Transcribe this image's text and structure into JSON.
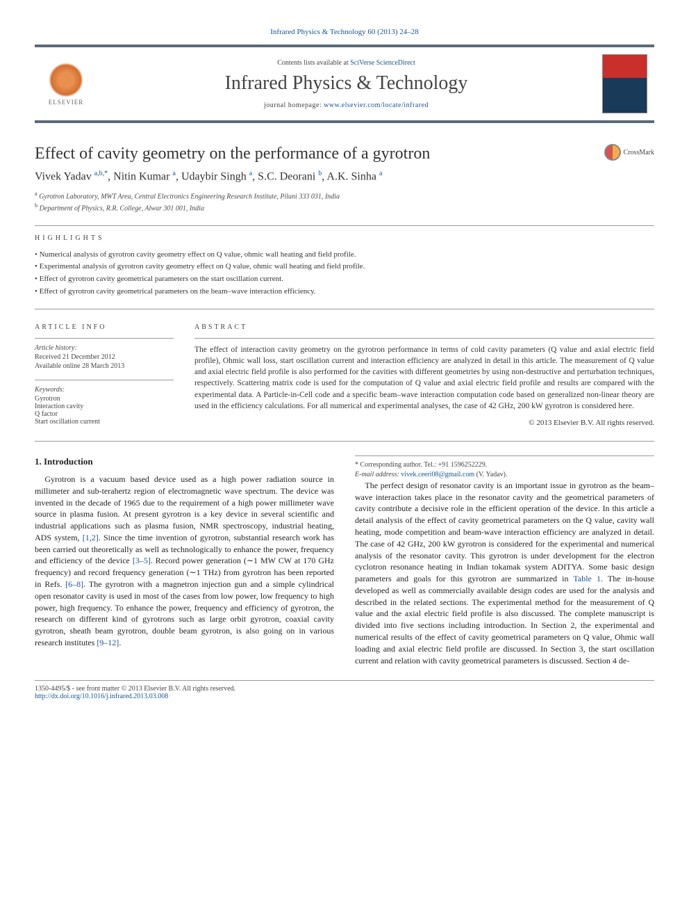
{
  "journal_ref": "Infrared Physics & Technology 60 (2013) 24–28",
  "header": {
    "contents_prefix": "Contents lists available at ",
    "contents_link": "SciVerse ScienceDirect",
    "journal_name": "Infrared Physics & Technology",
    "homepage_prefix": "journal homepage: ",
    "homepage_url": "www.elsevier.com/locate/infrared",
    "publisher": "ELSEVIER"
  },
  "article": {
    "title": "Effect of cavity geometry on the performance of a gyrotron",
    "crossmark": "CrossMark",
    "authors_html": "Vivek Yadav <sup>a,b,*</sup>, Nitin Kumar <sup>a</sup>, Udaybir Singh <sup>a</sup>, S.C. Deorani <sup>b</sup>, A.K. Sinha <sup>a</sup>",
    "affiliations": [
      {
        "sup": "a",
        "text": "Gyrotron Laboratory, MWT Area, Central Electronics Engineering Research Institute, Pilani 333 031, India"
      },
      {
        "sup": "b",
        "text": "Department of Physics, R.R. College, Alwar 301 001, India"
      }
    ]
  },
  "highlights": {
    "label": "HIGHLIGHTS",
    "items": [
      "Numerical analysis of gyrotron cavity geometry effect on Q value, ohmic wall heating and field profile.",
      "Experimental analysis of gyrotron cavity geometry effect on Q value, ohmic wall heating and field profile.",
      "Effect of gyrotron cavity geometrical parameters on the start oscillation current.",
      "Effect of gyrotron cavity geometrical parameters on the beam–wave interaction efficiency."
    ]
  },
  "article_info": {
    "label": "ARTICLE INFO",
    "history_label": "Article history:",
    "received": "Received 21 December 2012",
    "available": "Available online 28 March 2013",
    "keywords_label": "Keywords:",
    "keywords": [
      "Gyrotron",
      "Interaction cavity",
      "Q factor",
      "Start oscillation current"
    ]
  },
  "abstract": {
    "label": "ABSTRACT",
    "text": "The effect of interaction cavity geometry on the gyrotron performance in terms of cold cavity parameters (Q value and axial electric field profile), Ohmic wall loss, start oscillation current and interaction efficiency are analyzed in detail in this article. The measurement of Q value and axial electric field profile is also performed for the cavities with different geometries by using non-destructive and perturbation techniques, respectively. Scattering matrix code is used for the computation of Q value and axial electric field profile and results are compared with the experimental data. A Particle-in-Cell code and a specific beam–wave interaction computation code based on generalized non-linear theory are used in the efficiency calculations. For all numerical and experimental analyses, the case of 42 GHz, 200 kW gyrotron is considered here.",
    "copyright": "© 2013 Elsevier B.V. All rights reserved."
  },
  "body": {
    "intro_heading": "1. Introduction",
    "para1_a": "Gyrotron is a vacuum based device used as a high power radiation source in millimeter and sub-terahertz region of electromagnetic wave spectrum. The device was invented in the decade of 1965 due to the requirement of a high power millimeter wave source in plasma fusion. At present gyrotron is a key device in several scientific and industrial applications such as plasma fusion, NMR spectroscopy, industrial heating, ADS system, ",
    "ref12": "[1,2]",
    "para1_b": ". Since the time invention of gyrotron, substantial research work has been carried out theoretically as well as technologically to enhance the power, frequency and efficiency of the device ",
    "ref35": "[3–5]",
    "para1_c": ". Record power generation (∼1 MW CW at 170 GHz frequency) and record frequency generation (∼1 THz) from gyrotron has been reported in Refs. ",
    "ref68": "[6–8]",
    "para1_d": ". The gyrotron with a magnetron injection gun and a simple cylindrical open resonator cavity is used in most of the cases from low power, low frequency to high power, high frequency. To enhance the power, frequency and efficiency of gyrotron, the research on different kind of gyrotrons such as large orbit gyrotron, coaxial cavity gyrotron, sheath beam gyrotron, double beam gyrotron, is also going on in various research institutes ",
    "ref912": "[9–12]",
    "para1_e": ".",
    "para2_a": "The perfect design of resonator cavity is an important issue in gyrotron as the beam–wave interaction takes place in the resonator cavity and the geometrical parameters of cavity contribute a decisive role in the efficient operation of the device. In this article a detail analysis of the effect of cavity geometrical parameters on the Q value, cavity wall heating, mode competition and beam-wave interaction efficiency are analyzed in detail. The case of 42 GHz, 200 kW gyrotron is considered for the experimental and numerical analysis of the resonator cavity. This gyrotron is under development for the electron cyclotron resonance heating in Indian tokamak system ADITYA. Some basic design parameters and goals for this gyrotron are summarized in ",
    "table1": "Table 1",
    "para2_b": ". The in-house developed as well as commercially available design codes are used for the analysis and described in the related sections. The experimental method for the measurement of Q value and the axial electric field profile is also discussed. The complete manuscript is divided into five sections including introduction. In Section 2, the experimental and numerical results of the effect of cavity geometrical parameters on Q value, Ohmic wall loading and axial electric field profile are discussed. In Section 3, the start oscillation current and relation with cavity geometrical parameters is discussed. Section 4 de-"
  },
  "corresponding": {
    "label": "* Corresponding author. Tel.: +91 1596252229.",
    "email_label": "E-mail address:",
    "email": "vivek.ceeri08@gmail.com",
    "author": "(V. Yadav)."
  },
  "footer": {
    "issn": "1350-4495/$ - see front matter © 2013 Elsevier B.V. All rights reserved.",
    "doi": "http://dx.doi.org/10.1016/j.infrared.2013.03.008"
  },
  "colors": {
    "link": "#1a5490",
    "rule": "#5a6a7a",
    "cover_top": "#c9302c",
    "cover_bottom": "#1a3a5a"
  }
}
